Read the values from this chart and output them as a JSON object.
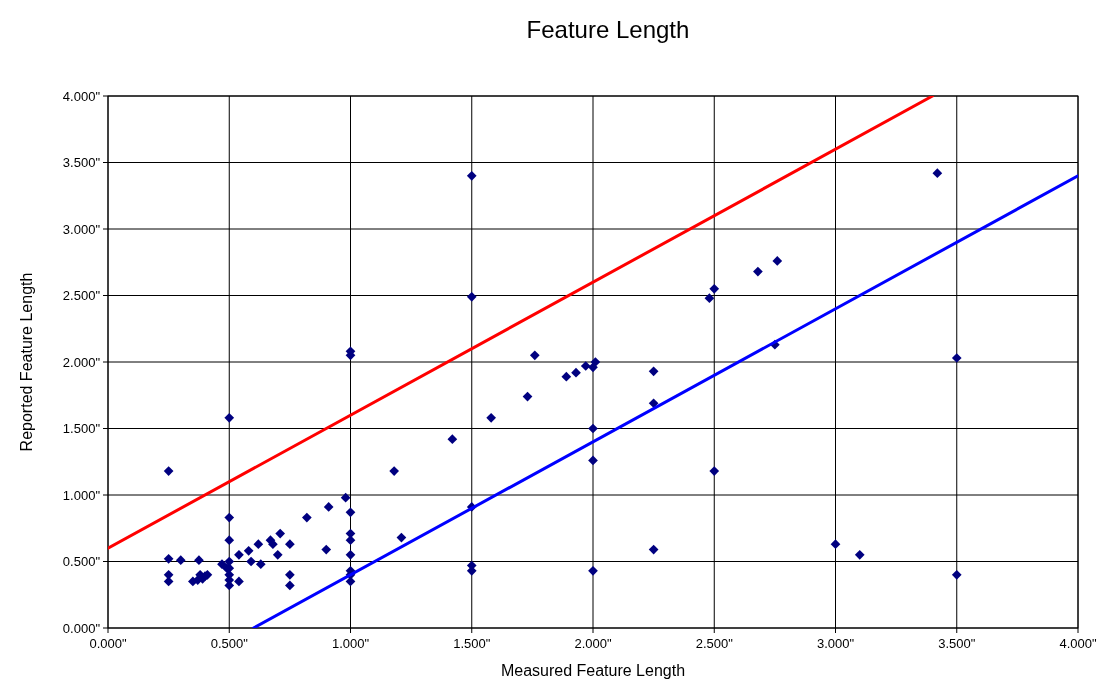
{
  "chart_data": {
    "type": "scatter",
    "title": "Feature Length",
    "xlabel": "Measured Feature Length",
    "ylabel": "Reported Feature Length",
    "xlim": [
      0,
      4
    ],
    "ylim": [
      0,
      4
    ],
    "xticks": [
      {
        "value": 0,
        "label": "0.000\""
      },
      {
        "value": 0.5,
        "label": "0.500\""
      },
      {
        "value": 1,
        "label": "1.000\""
      },
      {
        "value": 1.5,
        "label": "1.500\""
      },
      {
        "value": 2,
        "label": "2.000\""
      },
      {
        "value": 2.5,
        "label": "2.500\""
      },
      {
        "value": 3,
        "label": "3.000\""
      },
      {
        "value": 3.5,
        "label": "3.500\""
      },
      {
        "value": 4,
        "label": "4.000\""
      }
    ],
    "yticks": [
      {
        "value": 0,
        "label": "0.000\""
      },
      {
        "value": 0.5,
        "label": "0.500\""
      },
      {
        "value": 1,
        "label": "1.000\""
      },
      {
        "value": 1.5,
        "label": "1.500\""
      },
      {
        "value": 2,
        "label": "2.000\""
      },
      {
        "value": 2.5,
        "label": "2.500\""
      },
      {
        "value": 3,
        "label": "3.000\""
      },
      {
        "value": 3.5,
        "label": "3.500\""
      },
      {
        "value": 4,
        "label": "4.000\""
      }
    ],
    "grid": true,
    "marker": "diamond",
    "series": [
      {
        "color": "#000080",
        "x": [
          0.25,
          0.25,
          0.25,
          0.25,
          0.3,
          0.35,
          0.37,
          0.375,
          0.38,
          0.39,
          0.4,
          0.41,
          0.47,
          0.49,
          0.5,
          0.5,
          0.5,
          0.5,
          0.5,
          0.5,
          0.5,
          0.5,
          0.54,
          0.54,
          0.58,
          0.59,
          0.62,
          0.63,
          0.67,
          0.68,
          0.7,
          0.71,
          0.75,
          0.75,
          0.75,
          0.82,
          0.9,
          0.91,
          0.98,
          1,
          1,
          1,
          1,
          1,
          1,
          1,
          1,
          1,
          1.18,
          1.21,
          1.42,
          1.5,
          1.5,
          1.5,
          1.5,
          1.5,
          1.58,
          1.73,
          1.76,
          1.89,
          1.93,
          1.97,
          2,
          2.01,
          2,
          2,
          2,
          2.25,
          2.25,
          2.25,
          2.48,
          2.5,
          2.5,
          2.68,
          2.76,
          2.75,
          3,
          3.1,
          3.42,
          3.5,
          3.5
        ],
        "values": [
          1.18,
          0.52,
          0.4,
          0.35,
          0.51,
          0.35,
          0.36,
          0.51,
          0.4,
          0.37,
          0.39,
          0.4,
          0.48,
          0.45,
          1.58,
          0.83,
          0.66,
          0.5,
          0.45,
          0.4,
          0.36,
          0.32,
          0.55,
          0.35,
          0.58,
          0.5,
          0.63,
          0.48,
          0.66,
          0.63,
          0.55,
          0.71,
          0.63,
          0.4,
          0.32,
          0.83,
          0.59,
          0.91,
          0.98,
          2.08,
          2.05,
          0.87,
          0.71,
          0.66,
          0.55,
          0.43,
          0.4,
          0.35,
          1.18,
          0.68,
          1.42,
          3.4,
          2.49,
          0.91,
          0.47,
          0.43,
          1.58,
          1.74,
          2.05,
          1.89,
          1.92,
          1.97,
          1.96,
          2,
          1.5,
          1.26,
          0.43,
          1.93,
          1.69,
          0.59,
          2.48,
          2.55,
          1.18,
          2.68,
          2.76,
          2.13,
          0.63,
          0.55,
          3.42,
          2.03,
          0.4
        ]
      },
      {
        "type": "line",
        "color": "#ff0000",
        "line_style": "solid",
        "marker": "none",
        "x": [
          0,
          3.4
        ],
        "values": [
          0.6,
          4
        ]
      },
      {
        "type": "line",
        "color": "#0000ff",
        "line_style": "solid",
        "marker": "none",
        "x": [
          0.6,
          4
        ],
        "values": [
          0,
          3.4
        ]
      }
    ]
  }
}
